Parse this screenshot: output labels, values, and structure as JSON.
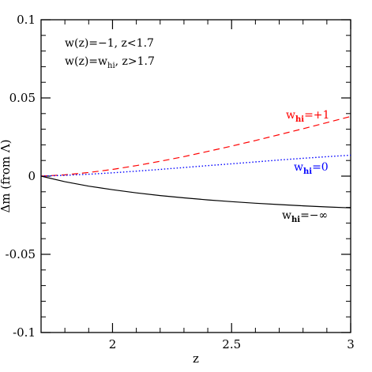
{
  "chart_data": {
    "type": "line",
    "xlabel": "z",
    "ylabel": "Δm (from Λ)",
    "xlim": [
      1.7,
      3.0
    ],
    "ylim": [
      -0.1,
      0.1
    ],
    "x_ticks": [
      "2",
      "2.5",
      "3"
    ],
    "x_tick_values": [
      2,
      2.5,
      3
    ],
    "y_ticks": [
      "-0.1",
      "-0.05",
      "0",
      "0.05",
      "0.1"
    ],
    "y_tick_values": [
      -0.1,
      -0.05,
      0,
      0.05,
      0.1
    ],
    "grid": false,
    "annotations": {
      "line1": "w(z)=−1,  z<1.7",
      "line2_prefix": "w(z)=w",
      "line2_sub": "hi",
      "line2_suffix": ",  z>1.7"
    },
    "series": [
      {
        "label_prefix": "w",
        "label_sub": "hi",
        "label_suffix": "=+1",
        "color": "#ff0000",
        "style": "dashed",
        "x": [
          1.7,
          1.8,
          1.9,
          2.0,
          2.1,
          2.2,
          2.3,
          2.4,
          2.5,
          2.6,
          2.7,
          2.8,
          2.9,
          3.0
        ],
        "y": [
          0.0,
          0.0008,
          0.0023,
          0.0043,
          0.0067,
          0.0095,
          0.0125,
          0.0158,
          0.0192,
          0.0228,
          0.0265,
          0.0303,
          0.0342,
          0.0382
        ]
      },
      {
        "label_prefix": "w",
        "label_sub": "hi",
        "label_suffix": "=0",
        "color": "#0000ff",
        "style": "dotted",
        "x": [
          1.7,
          1.8,
          1.9,
          2.0,
          2.1,
          2.2,
          2.3,
          2.4,
          2.5,
          2.6,
          2.7,
          2.8,
          2.9,
          3.0
        ],
        "y": [
          0.0,
          0.0005,
          0.0012,
          0.0021,
          0.0032,
          0.0043,
          0.0055,
          0.0067,
          0.0079,
          0.0091,
          0.0103,
          0.0114,
          0.0124,
          0.0134
        ]
      },
      {
        "label_prefix": "w",
        "label_sub": "hi",
        "label_suffix": "=−∞",
        "color": "#000000",
        "style": "solid",
        "x": [
          1.7,
          1.8,
          1.9,
          2.0,
          2.1,
          2.2,
          2.3,
          2.4,
          2.5,
          2.6,
          2.7,
          2.8,
          2.9,
          3.0
        ],
        "y": [
          0.0,
          -0.0036,
          -0.0064,
          -0.0087,
          -0.0107,
          -0.0124,
          -0.0139,
          -0.0152,
          -0.0163,
          -0.0173,
          -0.0182,
          -0.019,
          -0.0197,
          -0.0203
        ]
      }
    ]
  }
}
